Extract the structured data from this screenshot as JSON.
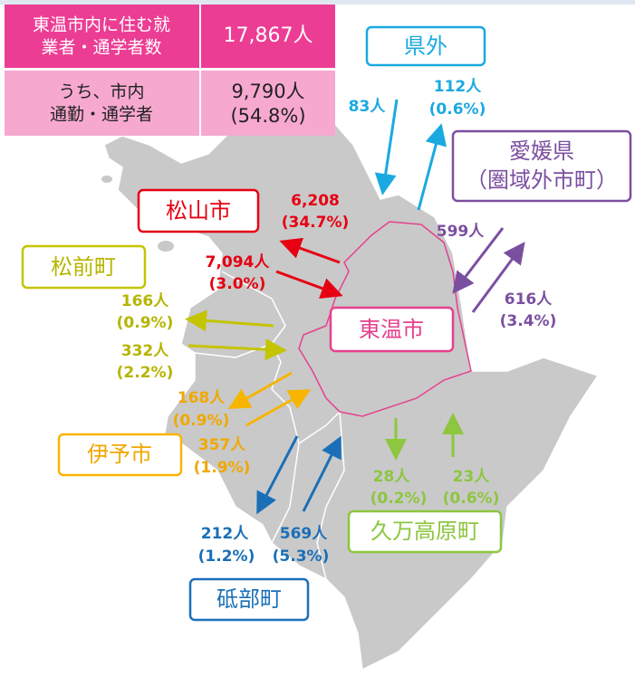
{
  "header_table": {
    "rows": [
      [
        [
          "東温市内に住む就",
          "業者・通学者数"
        ],
        [
          "17,867人"
        ]
      ],
      [
        [
          "うち、市内",
          "通勤・通学者"
        ],
        [
          "9,790人",
          "(54.8%)"
        ]
      ]
    ]
  },
  "regions": [
    {
      "name": [
        "県外"
      ]
    },
    {
      "name": [
        "愛媛県",
        "（圏域外市町）"
      ]
    },
    {
      "name": [
        "松山市"
      ]
    },
    {
      "name": [
        "松前町"
      ]
    },
    {
      "name": [
        "東温市"
      ]
    },
    {
      "name": [
        "伊予市"
      ]
    },
    {
      "name": [
        "砥部町"
      ]
    },
    {
      "name": [
        "久万高原町"
      ]
    }
  ],
  "flows": [
    {
      "label": [
        "83人"
      ]
    },
    {
      "label": [
        "112人",
        "(0.6%)"
      ]
    },
    {
      "label": [
        "599人"
      ]
    },
    {
      "label": [
        "616人",
        "(3.4%)"
      ]
    },
    {
      "label": [
        "6,208",
        "(34.7%)"
      ]
    },
    {
      "label": [
        "7,094人",
        "(3.0%)"
      ]
    },
    {
      "label": [
        "166人",
        "(0.9%)"
      ]
    },
    {
      "label": [
        "332人",
        "(2.2%)"
      ]
    },
    {
      "label": [
        "168人",
        "(0.9%)"
      ]
    },
    {
      "label": [
        "357人",
        "(1.9%)"
      ]
    },
    {
      "label": [
        "212人",
        "(1.2%)"
      ]
    },
    {
      "label": [
        "569人",
        "(5.3%)"
      ]
    },
    {
      "label": [
        "28人",
        "(0.2%)"
      ]
    },
    {
      "label": [
        "23人",
        "(0.6%)"
      ]
    }
  ]
}
